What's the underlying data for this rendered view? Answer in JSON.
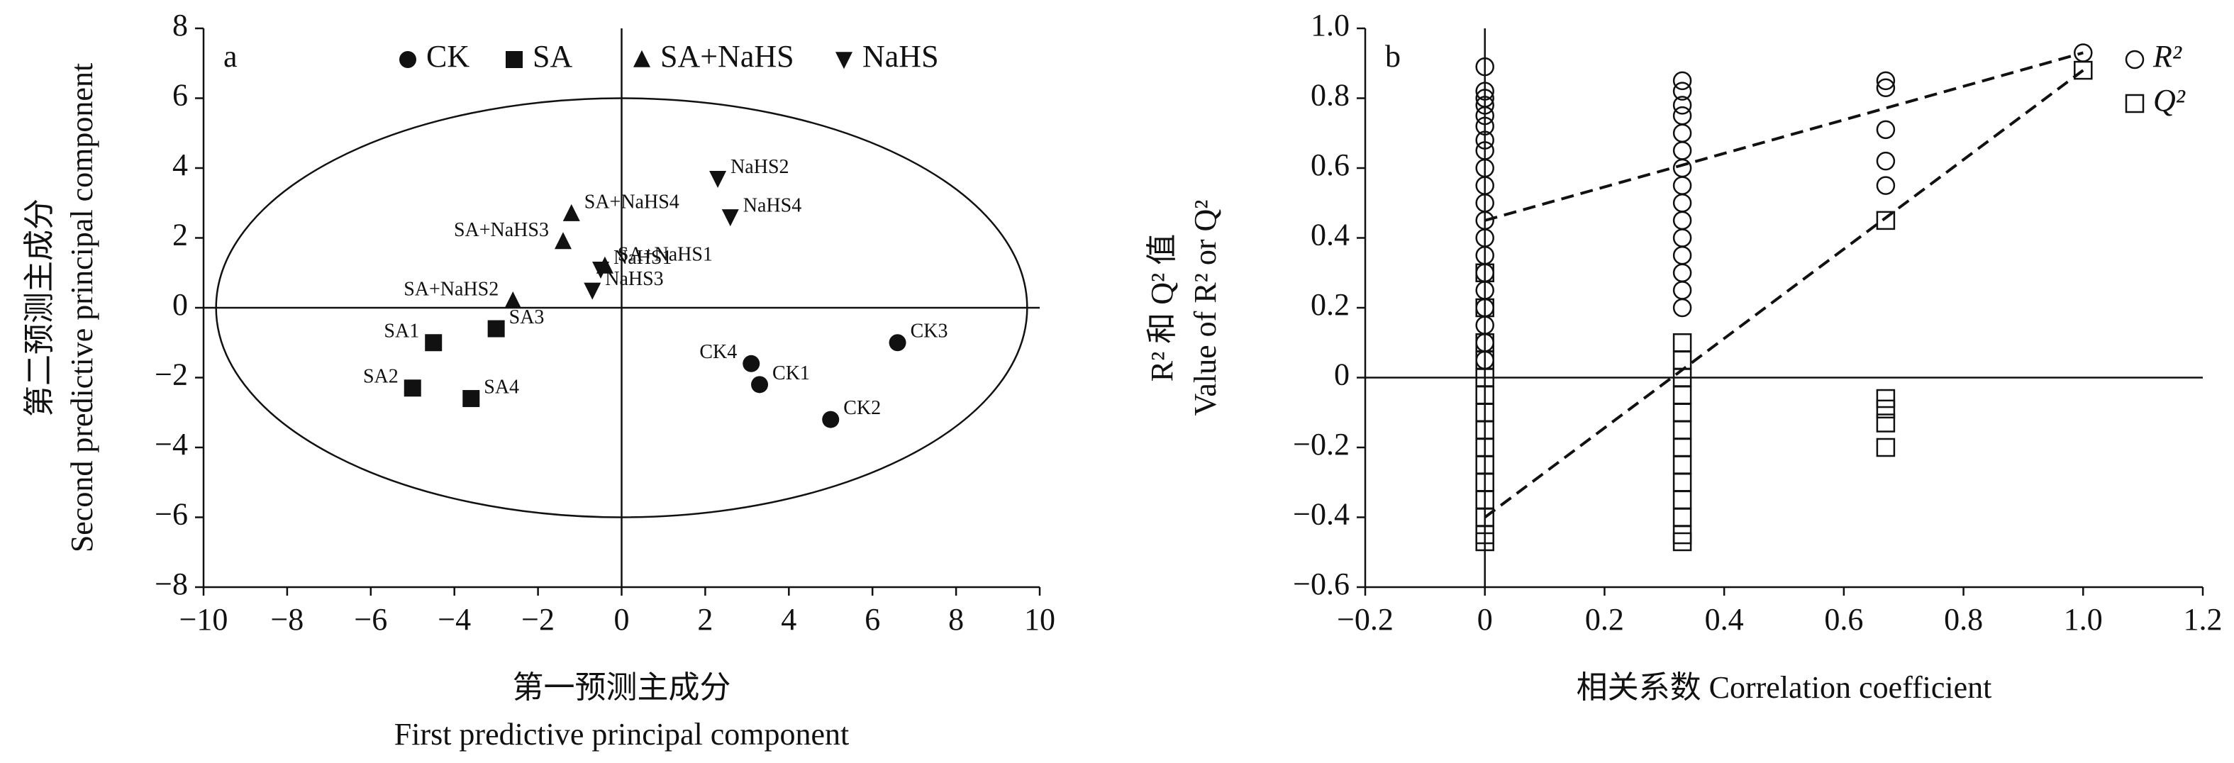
{
  "chart_data": [
    {
      "type": "scatter",
      "panel": "a",
      "xlabel": [
        "第一预测主成分",
        "First predictive principal component"
      ],
      "ylabel": [
        "第二预测主成分",
        "Second predictive principal component"
      ],
      "xlim": [
        -10,
        10
      ],
      "ylim": [
        -8,
        8
      ],
      "xticks": [
        {
          "value": -10,
          "label": "−10"
        },
        {
          "value": -8,
          "label": "−8"
        },
        {
          "value": -6,
          "label": "−6"
        },
        {
          "value": -4,
          "label": "−4"
        },
        {
          "value": -2,
          "label": "−2"
        },
        0,
        2,
        4,
        6,
        8,
        10
      ],
      "yticks": [
        {
          "value": -8,
          "label": "−8"
        },
        {
          "value": -6,
          "label": "−6"
        },
        {
          "value": -4,
          "label": "−4"
        },
        {
          "value": -2,
          "label": "−2"
        },
        0,
        2,
        4,
        6,
        8
      ],
      "ellipse": {
        "center": [
          0,
          0
        ],
        "radii": [
          9.7,
          6
        ]
      },
      "series": [
        {
          "name": "CK",
          "marker": "circle",
          "color": "#111",
          "labels": [
            "CK1",
            "CK2",
            "CK3",
            "CK4"
          ],
          "x": [
            3.3,
            5.0,
            6.6,
            3.1
          ],
          "values": [
            -2.2,
            -3.2,
            -1.0,
            -1.6
          ]
        },
        {
          "name": "SA",
          "marker": "square",
          "color": "#111",
          "labels": [
            "SA1",
            "SA2",
            "SA3",
            "SA4"
          ],
          "x": [
            -4.5,
            -5.0,
            -3.0,
            -3.6
          ],
          "values": [
            -1.0,
            -2.3,
            -0.6,
            -2.6
          ]
        },
        {
          "name": "SA+NaHS",
          "marker": "triangle-up",
          "color": "#111",
          "labels": [
            "SA+NaHS1",
            "SA+NaHS2",
            "SA+NaHS3",
            "SA+NaHS4"
          ],
          "x": [
            -0.4,
            -2.6,
            -1.4,
            -1.2
          ],
          "values": [
            1.2,
            0.2,
            1.9,
            2.7
          ]
        },
        {
          "name": "NaHS",
          "marker": "triangle-down",
          "color": "#111",
          "labels": [
            "NaHS1",
            "NaHS2",
            "NaHS3",
            "NaHS4"
          ],
          "x": [
            -0.5,
            2.3,
            -0.7,
            2.6
          ],
          "values": [
            1.1,
            3.7,
            0.5,
            2.6
          ]
        }
      ]
    },
    {
      "type": "scatter",
      "panel": "b",
      "xlabel": [
        "相关系数 Correlation coefficient"
      ],
      "ylabel": [
        "R² 和 Q² 值",
        "Value of R² or Q²"
      ],
      "xlim": [
        -0.2,
        1.2
      ],
      "ylim": [
        -0.6,
        1.0
      ],
      "xticks": [
        {
          "value": -0.2,
          "label": "−0.2"
        },
        0,
        0.2,
        0.4,
        0.6,
        0.8,
        {
          "value": 1.0,
          "label": "1.0"
        },
        1.2
      ],
      "yticks": [
        {
          "value": -0.6,
          "label": "−0.6"
        },
        {
          "value": -0.4,
          "label": "−0.4"
        },
        {
          "value": -0.2,
          "label": "−0.2"
        },
        0,
        0.2,
        0.4,
        0.6,
        0.8,
        {
          "value": 1.0,
          "label": "1.0"
        }
      ],
      "series": [
        {
          "name": "R²",
          "marker": "open-circle",
          "color": "#111",
          "x": [
            0,
            0,
            0,
            0,
            0,
            0,
            0,
            0,
            0,
            0,
            0,
            0,
            0,
            0,
            0,
            0,
            0,
            0,
            0,
            0,
            0.33,
            0.33,
            0.33,
            0.33,
            0.33,
            0.33,
            0.33,
            0.33,
            0.33,
            0.33,
            0.33,
            0.33,
            0.33,
            0.33,
            0.33,
            0.67,
            0.67,
            0.67,
            0.67,
            0.67,
            1.0
          ],
          "values": [
            0.89,
            0.82,
            0.8,
            0.78,
            0.75,
            0.72,
            0.68,
            0.65,
            0.6,
            0.55,
            0.5,
            0.45,
            0.4,
            0.35,
            0.3,
            0.25,
            0.2,
            0.15,
            0.1,
            0.05,
            0.85,
            0.82,
            0.78,
            0.75,
            0.7,
            0.65,
            0.6,
            0.55,
            0.5,
            0.45,
            0.4,
            0.35,
            0.3,
            0.25,
            0.2,
            0.85,
            0.83,
            0.71,
            0.62,
            0.55,
            0.93
          ],
          "line": {
            "x": [
              0,
              1.0
            ],
            "values": [
              0.45,
              0.93
            ]
          }
        },
        {
          "name": "Q²",
          "marker": "open-square",
          "color": "#111",
          "x": [
            0,
            0,
            0,
            0,
            0,
            0,
            0,
            0,
            0,
            0,
            0,
            0,
            0,
            0,
            0,
            0.33,
            0.33,
            0.33,
            0.33,
            0.33,
            0.33,
            0.33,
            0.33,
            0.33,
            0.33,
            0.33,
            0.33,
            0.33,
            0.67,
            0.67,
            0.67,
            0.67,
            0.67,
            1.0
          ],
          "values": [
            0.3,
            0.2,
            0.1,
            0.05,
            0,
            -0.05,
            -0.1,
            -0.15,
            -0.2,
            -0.25,
            -0.3,
            -0.35,
            -0.4,
            -0.45,
            -0.47,
            0.1,
            0.05,
            0,
            -0.05,
            -0.1,
            -0.15,
            -0.2,
            -0.25,
            -0.3,
            -0.35,
            -0.4,
            -0.45,
            -0.47,
            0.45,
            -0.06,
            -0.09,
            -0.13,
            -0.2,
            0.88
          ],
          "line": {
            "x": [
              0,
              1.0
            ],
            "values": [
              -0.4,
              0.88
            ]
          }
        }
      ]
    }
  ]
}
